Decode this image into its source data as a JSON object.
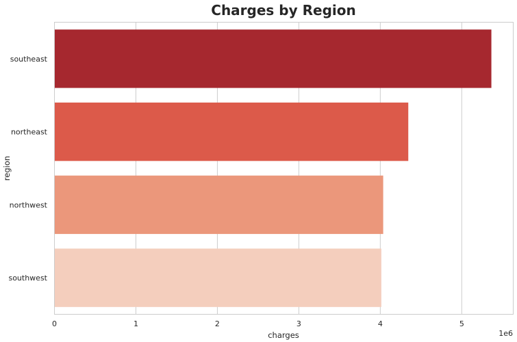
{
  "chart_data": {
    "type": "bar",
    "orientation": "horizontal",
    "title": "Charges by Region",
    "xlabel": "charges",
    "ylabel": "region",
    "scale_label": "1e6",
    "categories": [
      "southeast",
      "northeast",
      "northwest",
      "southwest"
    ],
    "values": [
      5363690,
      4343669,
      4035712,
      4012755
    ],
    "xlim": [
      0,
      5.632
    ],
    "xticks": [
      "0",
      "1",
      "2",
      "3",
      "4",
      "5"
    ],
    "colors": [
      "#a6282f",
      "#dc5a4a",
      "#eb977b",
      "#f4cebd"
    ],
    "grid": "vertical"
  }
}
